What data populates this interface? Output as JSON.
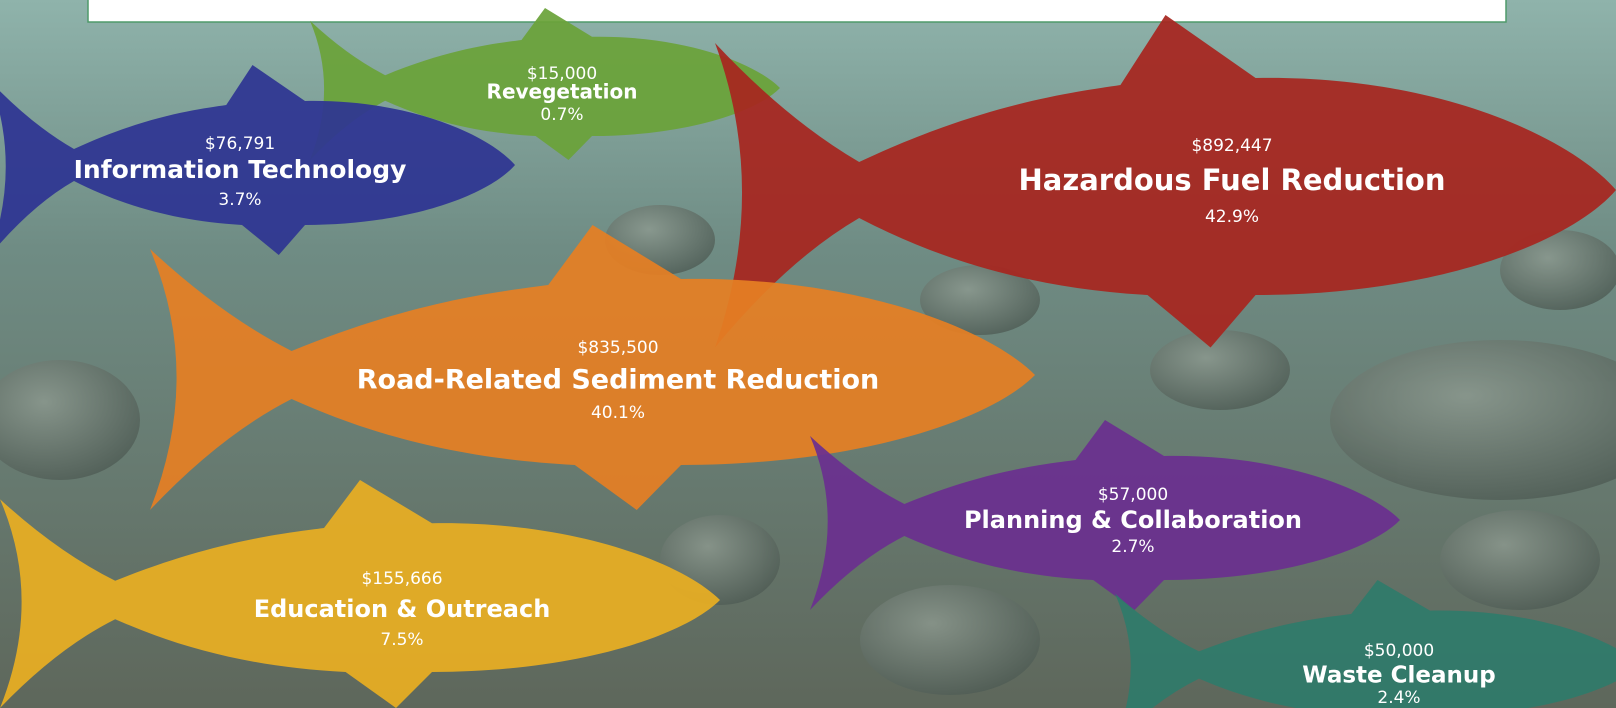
{
  "items": [
    {
      "amount": "$15,000",
      "label": "Revegetation",
      "percent": "0.7%"
    },
    {
      "amount": "$76,791",
      "label": "Information Technology",
      "percent": "3.7%"
    },
    {
      "amount": "$892,447",
      "label": "Hazardous Fuel Reduction",
      "percent": "42.9%"
    },
    {
      "amount": "$835,500",
      "label": "Road-Related Sediment Reduction",
      "percent": "40.1%"
    },
    {
      "amount": "$57,000",
      "label": "Planning & Collaboration",
      "percent": "2.7%"
    },
    {
      "amount": "$155,666",
      "label": "Education & Outreach",
      "percent": "7.5%"
    },
    {
      "amount": "$50,000",
      "label": "Waste Cleanup",
      "percent": "2.4%"
    }
  ]
}
